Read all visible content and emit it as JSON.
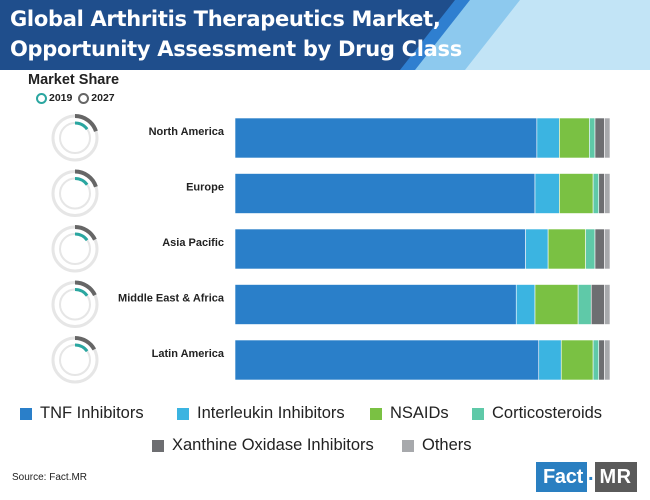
{
  "title_lines": [
    "Global Arthritis Therapeutics Market,",
    "Opportunity Assessment by Drug Class"
  ],
  "market_share_label": "Market Share",
  "years": [
    {
      "label": "2019",
      "color": "#2aa6a0"
    },
    {
      "label": "2027",
      "color": "#666666"
    }
  ],
  "source": "Source: Fact.MR",
  "logo": {
    "brand": "Fact",
    "dot": ".",
    "suffix": "MR"
  },
  "colors": {
    "header_dark": "#1f4e8c",
    "header_mid": "#2f7fd0",
    "header_light": "#8dc9ee",
    "header_lighter": "#c2e4f6"
  },
  "chart_data": {
    "type": "bar",
    "orientation": "horizontal",
    "stacked": true,
    "normalized_100": true,
    "categories": [
      "North America",
      "Europe",
      "Asia Pacific",
      "Middle East & Africa",
      "Latin America"
    ],
    "series": [
      {
        "name": "TNF Inhibitors",
        "color": "#2a7fc9",
        "values": [
          80.5,
          80.0,
          77.5,
          75.0,
          81.0
        ]
      },
      {
        "name": "Interleukin Inhibitors",
        "color": "#3bb4e1",
        "values": [
          6.0,
          6.5,
          6.0,
          5.0,
          6.0
        ]
      },
      {
        "name": "NSAIDs",
        "color": "#7ac143",
        "values": [
          8.0,
          9.0,
          10.0,
          11.5,
          8.5
        ]
      },
      {
        "name": "Corticosteroids",
        "color": "#5fc9a8",
        "values": [
          1.5,
          1.5,
          2.5,
          3.5,
          1.5
        ]
      },
      {
        "name": "Xanthine Oxidase Inhibitors",
        "color": "#6d6e71",
        "values": [
          2.5,
          1.5,
          2.5,
          3.5,
          1.5
        ]
      },
      {
        "name": "Others",
        "color": "#a7a9ac",
        "values": [
          1.5,
          1.5,
          1.5,
          1.5,
          1.5
        ]
      }
    ],
    "market_share": {
      "2019": [
        15,
        15,
        15,
        15,
        15
      ],
      "2027": [
        20,
        20,
        18,
        18,
        17
      ]
    },
    "legend_position": "bottom"
  }
}
